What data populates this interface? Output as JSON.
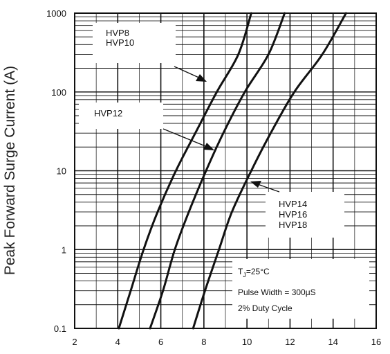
{
  "chart_data": {
    "type": "line",
    "title": "",
    "xlabel": "",
    "ylabel": "Peak Forward Surge Current (A)",
    "xlim": [
      2,
      16
    ],
    "ylim": [
      0.1,
      1000
    ],
    "yscale": "log",
    "grid": true,
    "x_ticks": [
      "2",
      "4",
      "6",
      "8",
      "10",
      "12",
      "14",
      "16"
    ],
    "y_ticks": [
      "0.1",
      "1",
      "10",
      "100",
      "1000"
    ],
    "series": [
      {
        "x": [
          4.05,
          4.6,
          5.2,
          5.85,
          6.7,
          7.6,
          8.6,
          9.6,
          10.2
        ],
        "y": [
          0.1,
          0.3,
          1,
          3,
          10,
          30,
          100,
          300,
          1000
        ]
      },
      {
        "x": [
          5.5,
          6.1,
          6.65,
          7.3,
          8.1,
          8.9,
          9.9,
          11.0,
          11.75
        ],
        "y": [
          0.1,
          0.3,
          1,
          3,
          10,
          30,
          100,
          300,
          1000
        ]
      },
      {
        "x": [
          7.5,
          8.05,
          8.7,
          9.3,
          10.2,
          11.1,
          12.2,
          13.5,
          14.6
        ],
        "y": [
          0.1,
          0.3,
          1,
          3,
          10,
          30,
          100,
          300,
          1000
        ]
      }
    ],
    "annotations": {
      "group1": [
        "HVP8",
        "HVP10"
      ],
      "group2": [
        "HVP12"
      ],
      "group3": [
        "HVP14",
        "HVP16",
        "HVP18"
      ]
    },
    "conditions": {
      "temp_sym": "T",
      "temp_sub": "J",
      "temp_val": "=25°C",
      "pulse": "Pulse Width = 300μS",
      "duty": "2% Duty Cycle"
    }
  }
}
